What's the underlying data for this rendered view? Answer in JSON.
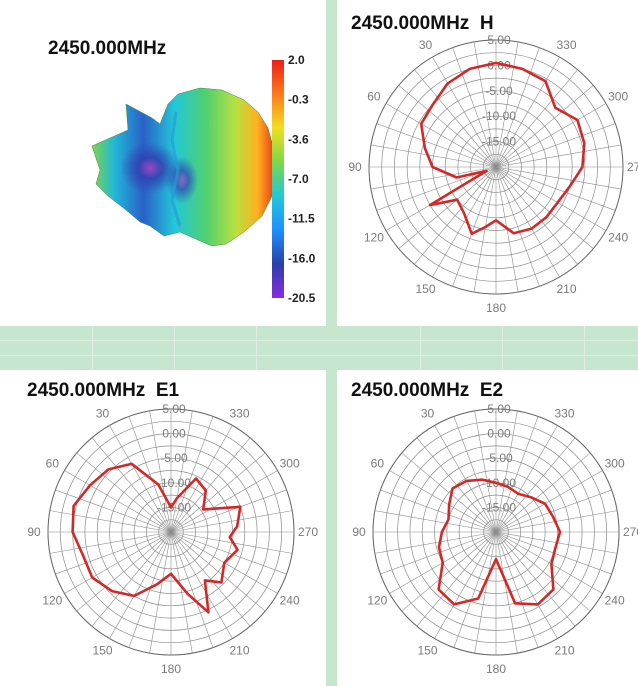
{
  "panels": {
    "p3d": {
      "title": "2450.000MHz"
    },
    "h": {
      "title": "2450.000MHz  H"
    },
    "e1": {
      "title": "2450.000MHz  E1"
    },
    "e2": {
      "title": "2450.000MHz  E2"
    }
  },
  "colors": {
    "pattern_line": "#d42828",
    "grid_line": "#8c8c8c",
    "label_text": "#7a7a7a",
    "divider": "#c6e6cf"
  },
  "chart_data": [
    {
      "type": "colorbar",
      "title": "2450.000MHz",
      "ticks": [
        "2.0",
        "-0.3",
        "-3.6",
        "-7.0",
        "-11.5",
        "-16.0",
        "-20.5"
      ],
      "range": [
        -20.5,
        2.0
      ],
      "colormap": [
        "#8a2be2",
        "#2a3fa8",
        "#1e90ff",
        "#22c8d8",
        "#7bd84a",
        "#f0e020",
        "#ff7a1a",
        "#e8201a"
      ]
    },
    {
      "type": "polar",
      "title": "2450.000MHz  H",
      "radial_ticks": [
        "5.00",
        "0.00",
        "-5.00",
        "-10.00",
        "-15.00"
      ],
      "radial_range": [
        -20,
        5
      ],
      "angle_labels": [
        "330",
        "300",
        "270",
        "240",
        "210",
        "180",
        "150",
        "120",
        "90",
        "60",
        "30"
      ],
      "series": [
        {
          "angles": [
            0,
            15,
            30,
            45,
            60,
            75,
            90,
            105,
            112,
            120,
            130,
            145,
            160,
            170,
            180,
            195,
            210,
            225,
            240,
            255,
            270,
            285,
            300,
            315,
            330,
            345
          ],
          "values": [
            0.5,
            0.0,
            -1.0,
            -2.5,
            -3.0,
            -5.5,
            -7.5,
            -12.0,
            -18.0,
            -5.0,
            -10.0,
            -9.0,
            -6.0,
            -8.0,
            -9.5,
            -6.5,
            -6.0,
            -6.0,
            -6.0,
            -5.0,
            -3.0,
            -2.0,
            -1.5,
            -3.5,
            -0.5,
            0.0
          ]
        }
      ]
    },
    {
      "type": "polar",
      "title": "2450.000MHz  E1",
      "radial_ticks": [
        "5.00",
        "0.00",
        "-5.00",
        "-10.00",
        "-15.00"
      ],
      "radial_range": [
        -20,
        5
      ],
      "angle_labels": [
        "330",
        "300",
        "270",
        "240",
        "210",
        "180",
        "150",
        "120",
        "90",
        "60",
        "30"
      ],
      "series": [
        {
          "angles": [
            0,
            15,
            30,
            45,
            60,
            75,
            90,
            105,
            120,
            135,
            150,
            165,
            180,
            195,
            205,
            215,
            225,
            240,
            255,
            265,
            275,
            290,
            305,
            320,
            335,
            350
          ],
          "values": [
            -15.0,
            -10.0,
            -4.0,
            -2.0,
            -1.0,
            0.5,
            0.0,
            -1.5,
            -1.5,
            -3.0,
            -5.0,
            -9.0,
            -11.5,
            -7.0,
            -2.0,
            -8.0,
            -5.5,
            -7.5,
            -6.0,
            -8.0,
            -6.5,
            -5.0,
            -12.0,
            -9.0,
            -8.0,
            -13.0
          ]
        }
      ]
    },
    {
      "type": "polar",
      "title": "2450.000MHz  E2",
      "radial_ticks": [
        "5.00",
        "0.00",
        "-5.00",
        "-10.00",
        "-15.00"
      ],
      "radial_range": [
        -20,
        5
      ],
      "angle_labels": [
        "330",
        "300",
        "270",
        "240",
        "210",
        "180",
        "150",
        "120",
        "90",
        "60",
        "30"
      ],
      "series": [
        {
          "angles": [
            0,
            15,
            30,
            45,
            60,
            75,
            90,
            105,
            120,
            135,
            150,
            165,
            180,
            195,
            210,
            225,
            240,
            255,
            270,
            285,
            300,
            315,
            330,
            345
          ],
          "values": [
            -10.0,
            -9.0,
            -8.0,
            -7.5,
            -9.0,
            -10.0,
            -9.0,
            -8.0,
            -7.5,
            -3.5,
            -3.0,
            -6.0,
            -14.5,
            -5.0,
            -3.0,
            -3.5,
            -7.0,
            -7.5,
            -7.0,
            -8.0,
            -8.5,
            -10.0,
            -11.0,
            -10.5
          ]
        }
      ]
    }
  ]
}
